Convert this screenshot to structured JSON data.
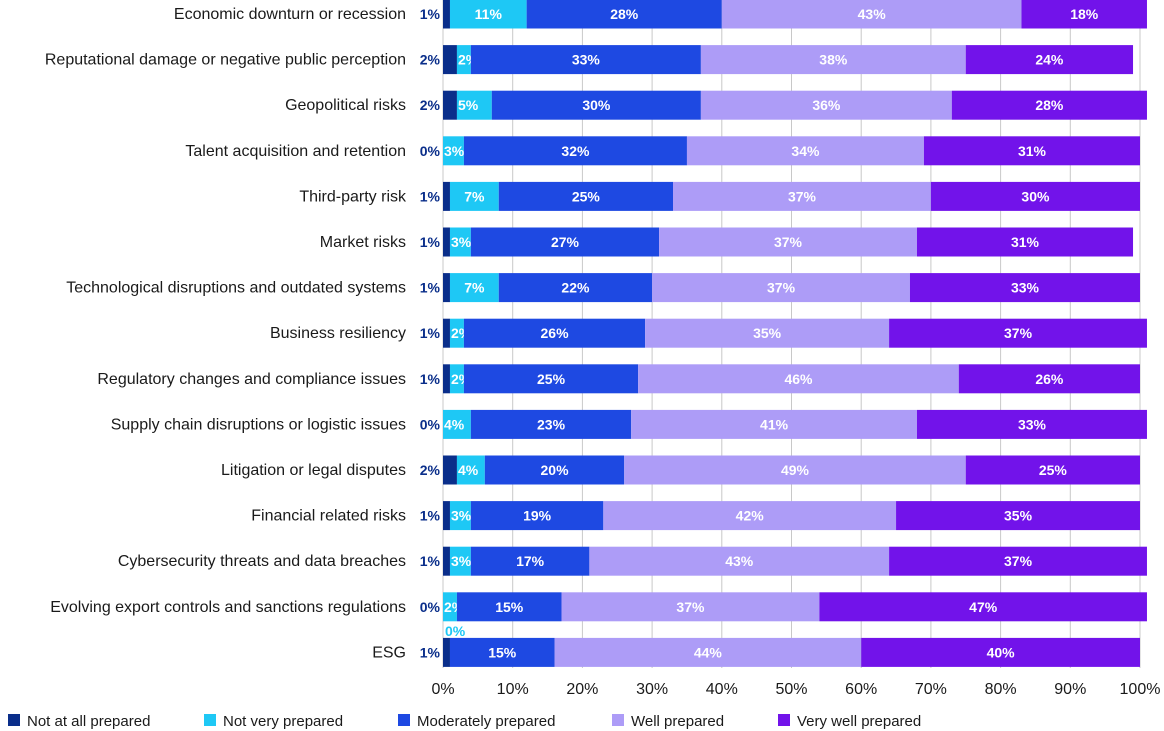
{
  "chart_data": {
    "type": "bar",
    "orientation": "horizontal",
    "stacked": true,
    "categories": [
      "Economic downturn or recession",
      "Reputational damage or negative public perception",
      "Geopolitical risks",
      "Talent acquisition and retention",
      "Third-party risk",
      "Market risks",
      "Technological disruptions and outdated systems",
      "Business resiliency",
      "Regulatory changes and compliance issues",
      "Supply chain disruptions or logistic issues",
      "Litigation or legal disputes",
      "Financial related risks",
      "Cybersecurity threats and data breaches",
      "Evolving export controls and sanctions regulations",
      "ESG"
    ],
    "series": [
      {
        "name": "Not at all prepared",
        "color": "#0a2e8a",
        "values": [
          1,
          2,
          2,
          0,
          1,
          1,
          1,
          1,
          1,
          0,
          2,
          1,
          1,
          0,
          1
        ]
      },
      {
        "name": "Not very prepared",
        "color": "#1ec8f5",
        "values": [
          11,
          2,
          5,
          3,
          7,
          3,
          7,
          2,
          2,
          4,
          4,
          3,
          3,
          2,
          0
        ]
      },
      {
        "name": "Moderately prepared",
        "color": "#1e49e2",
        "values": [
          28,
          33,
          30,
          32,
          25,
          27,
          22,
          26,
          25,
          23,
          20,
          19,
          17,
          15,
          15
        ]
      },
      {
        "name": "Well prepared",
        "color": "#ad9cf7",
        "values": [
          43,
          38,
          36,
          34,
          37,
          37,
          37,
          35,
          46,
          41,
          49,
          42,
          43,
          37,
          44
        ]
      },
      {
        "name": "Very well prepared",
        "color": "#7213ea",
        "values": [
          18,
          24,
          28,
          31,
          30,
          31,
          33,
          37,
          26,
          33,
          25,
          35,
          37,
          47,
          40
        ]
      }
    ],
    "value_labels": [
      [
        "1%",
        "11%",
        "28%",
        "43%",
        "18%"
      ],
      [
        "2%",
        "2%",
        "33%",
        "38%",
        "24%"
      ],
      [
        "2%",
        "5%",
        "30%",
        "36%",
        "28%"
      ],
      [
        "0%",
        "3%",
        "32%",
        "34%",
        "31%"
      ],
      [
        "1%",
        "7%",
        "25%",
        "37%",
        "30%"
      ],
      [
        "1%",
        "3%",
        "27%",
        "37%",
        "31%"
      ],
      [
        "1%",
        "7%",
        "22%",
        "37%",
        "33%"
      ],
      [
        "1%",
        "2%",
        "26%",
        "35%",
        "37%"
      ],
      [
        "1%",
        "2%",
        "25%",
        "46%",
        "26%"
      ],
      [
        "0%",
        "4%",
        "23%",
        "41%",
        "33%"
      ],
      [
        "2%",
        "4%",
        "20%",
        "49%",
        "25%"
      ],
      [
        "1%",
        "3%",
        "19%",
        "42%",
        "35%"
      ],
      [
        "1%",
        "3%",
        "17%",
        "43%",
        "37%"
      ],
      [
        "0%",
        "2%",
        "15%",
        "37%",
        "47%"
      ],
      [
        "1%",
        "0%",
        "15%",
        "44%",
        "40%"
      ]
    ],
    "xticks": [
      "0%",
      "10%",
      "20%",
      "30%",
      "40%",
      "50%",
      "60%",
      "70%",
      "80%",
      "90%",
      "100%"
    ],
    "xlim": [
      0,
      100
    ],
    "grid": true,
    "legend_position": "bottom",
    "title": "",
    "xlabel": "",
    "ylabel": ""
  }
}
